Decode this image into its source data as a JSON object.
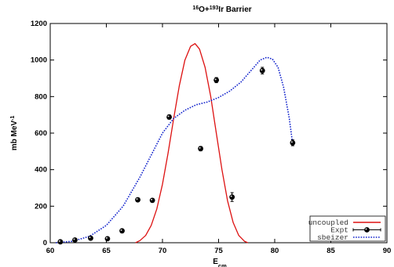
{
  "chart_data": {
    "type": "line",
    "title": {
      "pre": "16",
      "a": "O+",
      "sup": "193",
      "b": "Ir Barrier"
    },
    "xlabel": {
      "main": "E",
      "sub": "cm"
    },
    "ylabel": {
      "main": "mb MeV",
      "sup": "-1"
    },
    "xlim": [
      60,
      90
    ],
    "ylim": [
      0,
      1200
    ],
    "xticks": [
      60,
      65,
      70,
      75,
      80,
      85,
      90
    ],
    "yticks": [
      0,
      200,
      400,
      600,
      800,
      1000,
      1200
    ],
    "grid": false,
    "legend_position": "bottom-right",
    "series": [
      {
        "name": "uncoupled",
        "style": "solid",
        "color": "#dd1111",
        "x": [
          67.6,
          68.0,
          68.5,
          69.0,
          69.5,
          70.0,
          70.5,
          71.0,
          71.5,
          72.0,
          72.5,
          72.9,
          73.3,
          73.8,
          74.3,
          74.8,
          75.3,
          75.8,
          76.3,
          76.8,
          77.3,
          77.6
        ],
        "y": [
          0,
          12,
          40,
          95,
          185,
          320,
          490,
          680,
          860,
          1000,
          1075,
          1090,
          1060,
          960,
          800,
          600,
          400,
          230,
          110,
          40,
          8,
          0
        ]
      },
      {
        "name": "sbeizer",
        "style": "dotted",
        "color": "#1122cc",
        "x": [
          60.5,
          62.0,
          63.5,
          65.0,
          66.5,
          68.0,
          69.0,
          70.0,
          71.0,
          72.0,
          73.0,
          74.0,
          75.0,
          76.0,
          77.0,
          78.0,
          78.7,
          79.3,
          79.8,
          80.3,
          80.8,
          81.3,
          81.6
        ],
        "y": [
          0,
          8,
          35,
          95,
          200,
          360,
          480,
          600,
          680,
          725,
          755,
          770,
          795,
          830,
          880,
          950,
          1000,
          1015,
          1005,
          960,
          850,
          680,
          540
        ]
      }
    ],
    "points": {
      "name": "Expt",
      "x": [
        60.9,
        62.2,
        63.6,
        65.1,
        66.4,
        67.8,
        69.1,
        70.6,
        73.4,
        74.8,
        76.2,
        78.9,
        81.6
      ],
      "y": [
        5,
        15,
        25,
        22,
        65,
        235,
        232,
        688,
        515,
        890,
        250,
        942,
        547
      ],
      "err": [
        8,
        8,
        10,
        8,
        10,
        10,
        10,
        12,
        12,
        14,
        24,
        18,
        16
      ]
    }
  }
}
